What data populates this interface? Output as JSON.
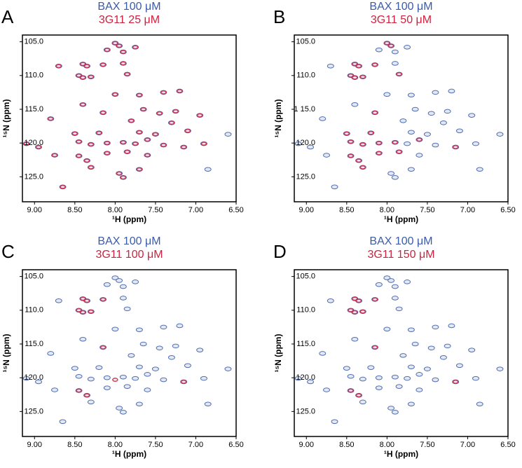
{
  "chart_data": [
    {
      "label": "A",
      "type": "scatter",
      "xlabel": "¹H (ppm)",
      "ylabel": "¹⁵N (ppm)",
      "xlim": [
        9.15,
        6.5
      ],
      "ylim": [
        104,
        128.7
      ],
      "xticks": [
        {
          "value": 9.0,
          "label": "9.00"
        },
        {
          "value": 8.5,
          "label": "8.50"
        },
        {
          "value": 8.0,
          "label": "8.00"
        },
        {
          "value": 7.5,
          "label": "7.50"
        },
        {
          "value": 7.0,
          "label": "7.00"
        },
        {
          "value": 6.5,
          "label": "6.50"
        }
      ],
      "yticks": [
        {
          "value": 105,
          "label": "105.0"
        },
        {
          "value": 110,
          "label": "110.0"
        },
        {
          "value": 115,
          "label": "115.0"
        },
        {
          "value": 120,
          "label": "120.0"
        },
        {
          "value": 125,
          "label": "125.0"
        }
      ],
      "series": [
        {
          "name": "BAX 100 μM",
          "color": "#3a5ba8",
          "x": [
            8.0,
            7.95,
            7.75,
            7.9,
            8.1,
            8.7,
            8.4,
            8.35,
            8.15,
            7.9,
            8.45,
            8.4,
            8.3,
            7.85,
            8.0,
            7.7,
            7.4,
            7.2,
            8.4,
            8.15,
            7.65,
            7.45,
            7.25,
            6.95,
            8.8,
            7.8,
            7.3,
            8.5,
            8.2,
            7.7,
            7.5,
            7.1,
            6.6,
            9.1,
            8.95,
            8.45,
            8.3,
            8.1,
            7.9,
            7.75,
            7.6,
            7.4,
            7.15,
            6.9,
            8.75,
            8.45,
            8.35,
            8.1,
            7.85,
            7.6,
            8.3,
            7.7,
            6.85,
            7.95,
            7.9,
            8.65
          ],
          "y": [
            105.2,
            105.6,
            105.8,
            106.5,
            106.2,
            108.6,
            108.3,
            108.6,
            108.4,
            108.2,
            110.0,
            110.3,
            110.2,
            109.8,
            112.8,
            112.9,
            112.5,
            112.3,
            114.3,
            115.5,
            115.0,
            115.6,
            115.3,
            115.9,
            116.4,
            116.7,
            117.0,
            118.6,
            118.5,
            118.4,
            118.7,
            118.2,
            118.7,
            120.1,
            120.6,
            119.8,
            120.2,
            120.0,
            119.9,
            120.1,
            119.5,
            120.3,
            120.6,
            120.1,
            121.8,
            121.9,
            122.6,
            121.5,
            121.3,
            121.8,
            123.6,
            123.9,
            123.9,
            124.5,
            125.1,
            126.5
          ]
        },
        {
          "name": "3G11 25 μM",
          "color": "#d0213f",
          "x": [
            8.0,
            7.95,
            7.75,
            7.9,
            8.1,
            8.7,
            8.4,
            8.35,
            8.15,
            7.9,
            8.45,
            8.4,
            8.3,
            7.85,
            8.0,
            7.7,
            7.4,
            7.2,
            8.4,
            8.15,
            7.65,
            7.45,
            7.25,
            6.95,
            8.8,
            7.8,
            7.3,
            8.5,
            8.2,
            7.7,
            7.5,
            7.1,
            9.1,
            8.95,
            8.45,
            8.3,
            8.1,
            7.9,
            7.75,
            7.6,
            7.4,
            7.15,
            6.9,
            8.75,
            8.45,
            8.35,
            8.1,
            7.85,
            7.6,
            8.3,
            7.7,
            7.95,
            7.9,
            8.65
          ],
          "y": [
            105.2,
            105.6,
            105.8,
            106.5,
            106.2,
            108.6,
            108.3,
            108.6,
            108.4,
            108.2,
            110.0,
            110.3,
            110.2,
            109.8,
            112.8,
            112.9,
            112.5,
            112.3,
            114.3,
            115.5,
            115.0,
            115.6,
            115.3,
            115.9,
            116.4,
            116.7,
            117.0,
            118.6,
            118.5,
            118.4,
            118.7,
            118.2,
            120.1,
            120.6,
            119.8,
            120.2,
            120.0,
            119.9,
            120.1,
            119.5,
            120.3,
            120.6,
            120.1,
            121.8,
            121.9,
            122.6,
            121.5,
            121.3,
            121.8,
            123.6,
            123.9,
            124.5,
            125.1,
            126.5
          ]
        }
      ]
    },
    {
      "label": "B",
      "type": "scatter",
      "xlabel": "¹H (ppm)",
      "ylabel": "¹⁵N (ppm)",
      "xlim": [
        9.15,
        6.5
      ],
      "ylim": [
        104,
        128.7
      ],
      "xticks": [
        {
          "value": 9.0,
          "label": "9.00"
        },
        {
          "value": 8.5,
          "label": "8.50"
        },
        {
          "value": 8.0,
          "label": "8.00"
        },
        {
          "value": 7.5,
          "label": "7.50"
        },
        {
          "value": 7.0,
          "label": "7.00"
        },
        {
          "value": 6.5,
          "label": "6.50"
        }
      ],
      "yticks": [
        {
          "value": 105,
          "label": "105.0"
        },
        {
          "value": 110,
          "label": "110.0"
        },
        {
          "value": 115,
          "label": "1 15.0"
        },
        {
          "value": 120,
          "label": "120.0"
        },
        {
          "value": 125,
          "label": "125.0"
        }
      ],
      "series": [
        {
          "name": "BAX 100 μM",
          "color": "#3a5ba8",
          "x": [
            8.0,
            7.95,
            7.75,
            7.9,
            8.1,
            8.7,
            8.4,
            8.35,
            8.15,
            7.9,
            8.45,
            8.4,
            8.3,
            7.85,
            8.0,
            7.7,
            7.4,
            7.2,
            8.4,
            8.15,
            7.65,
            7.45,
            7.25,
            6.95,
            8.8,
            7.8,
            7.3,
            8.5,
            8.2,
            7.7,
            7.5,
            7.1,
            6.6,
            9.1,
            8.95,
            8.45,
            8.3,
            8.1,
            7.9,
            7.75,
            7.6,
            7.4,
            7.15,
            6.9,
            8.75,
            8.45,
            8.35,
            8.1,
            7.85,
            7.6,
            8.3,
            7.7,
            6.85,
            7.95,
            7.9,
            8.65
          ],
          "y": [
            105.2,
            105.6,
            105.8,
            106.5,
            106.2,
            108.6,
            108.3,
            108.6,
            108.4,
            108.2,
            110.0,
            110.3,
            110.2,
            109.8,
            112.8,
            112.9,
            112.5,
            112.3,
            114.3,
            115.5,
            115.0,
            115.6,
            115.3,
            115.9,
            116.4,
            116.7,
            117.0,
            118.6,
            118.5,
            118.4,
            118.7,
            118.2,
            118.7,
            120.1,
            120.6,
            119.8,
            120.2,
            120.0,
            119.9,
            120.1,
            119.5,
            120.3,
            120.6,
            120.1,
            121.8,
            121.9,
            122.6,
            121.5,
            121.3,
            121.8,
            123.6,
            123.9,
            123.9,
            124.5,
            125.1,
            126.5
          ]
        },
        {
          "name": "3G11 50 μM",
          "color": "#d0213f",
          "x": [
            8.0,
            7.95,
            8.4,
            8.35,
            8.15,
            8.45,
            8.4,
            8.3,
            7.85,
            8.15,
            8.5,
            8.2,
            8.45,
            8.3,
            8.1,
            7.9,
            7.6,
            7.15,
            8.45,
            8.35,
            8.1,
            7.85,
            8.3
          ],
          "y": [
            105.2,
            105.6,
            108.3,
            108.6,
            108.4,
            110.0,
            110.3,
            110.2,
            109.8,
            115.5,
            118.6,
            118.5,
            119.8,
            120.2,
            120.0,
            119.9,
            119.5,
            120.6,
            121.9,
            122.6,
            121.5,
            121.3,
            123.6
          ]
        }
      ]
    },
    {
      "label": "C",
      "type": "scatter",
      "xlabel": "¹H (ppm)",
      "ylabel": "¹⁵N (ppm)",
      "xlim": [
        9.15,
        6.5
      ],
      "ylim": [
        104,
        128.7
      ],
      "xticks": [
        {
          "value": 9.0,
          "label": "9.00"
        },
        {
          "value": 8.5,
          "label": "8.50"
        },
        {
          "value": 8.0,
          "label": "8.00"
        },
        {
          "value": 7.5,
          "label": "7.50"
        },
        {
          "value": 7.0,
          "label": "7.00"
        },
        {
          "value": 6.5,
          "label": "6.50"
        }
      ],
      "yticks": [
        {
          "value": 105,
          "label": "105.0"
        },
        {
          "value": 110,
          "label": "110.0"
        },
        {
          "value": 115,
          "label": "115.0"
        },
        {
          "value": 120,
          "label": "120.0"
        },
        {
          "value": 125,
          "label": "125.0"
        }
      ],
      "series": [
        {
          "name": "BAX 100 μM",
          "color": "#3a5ba8",
          "x": [
            8.0,
            7.95,
            7.75,
            7.9,
            8.1,
            8.7,
            8.4,
            8.35,
            8.15,
            7.9,
            8.45,
            8.4,
            8.3,
            7.85,
            8.0,
            7.7,
            7.4,
            7.2,
            8.4,
            8.15,
            7.65,
            7.45,
            7.25,
            6.95,
            8.8,
            7.8,
            7.3,
            8.5,
            8.2,
            7.7,
            7.5,
            7.1,
            6.6,
            9.1,
            8.95,
            8.45,
            8.3,
            8.1,
            7.9,
            7.75,
            7.6,
            7.4,
            7.15,
            6.9,
            8.75,
            8.45,
            8.35,
            8.1,
            7.85,
            7.6,
            8.3,
            7.7,
            6.85,
            7.95,
            7.9,
            8.65
          ],
          "y": [
            105.2,
            105.6,
            105.8,
            106.5,
            106.2,
            108.6,
            108.3,
            108.6,
            108.4,
            108.2,
            110.0,
            110.3,
            110.2,
            109.8,
            112.8,
            112.9,
            112.5,
            112.3,
            114.3,
            115.5,
            115.0,
            115.6,
            115.3,
            115.9,
            116.4,
            116.7,
            117.0,
            118.6,
            118.5,
            118.4,
            118.7,
            118.2,
            118.7,
            120.1,
            120.6,
            119.8,
            120.2,
            120.0,
            119.9,
            120.1,
            119.5,
            120.3,
            120.6,
            120.1,
            121.8,
            121.9,
            122.6,
            121.5,
            121.3,
            121.8,
            123.6,
            123.9,
            123.9,
            124.5,
            125.1,
            126.5
          ]
        },
        {
          "name": "3G11 100 μM",
          "color": "#d0213f",
          "x": [
            8.4,
            8.35,
            8.15,
            8.45,
            8.4,
            8.3,
            8.15,
            8.0,
            8.45,
            8.35,
            7.15
          ],
          "y": [
            108.3,
            108.6,
            108.4,
            110.0,
            110.3,
            110.2,
            115.5,
            120.3,
            121.9,
            122.6,
            120.6
          ]
        }
      ]
    },
    {
      "label": "D",
      "type": "scatter",
      "xlabel": "¹H (ppm)",
      "ylabel": "¹⁵N (ppm)",
      "xlim": [
        9.15,
        6.5
      ],
      "ylim": [
        104,
        128.7
      ],
      "xticks": [
        {
          "value": 9.0,
          "label": "9.00"
        },
        {
          "value": 8.5,
          "label": "8.50"
        },
        {
          "value": 8.0,
          "label": "8.00"
        },
        {
          "value": 7.5,
          "label": "7.50"
        },
        {
          "value": 7.0,
          "label": "7.00"
        },
        {
          "value": 6.5,
          "label": "6.50"
        }
      ],
      "yticks": [
        {
          "value": 105,
          "label": "105.0"
        },
        {
          "value": 110,
          "label": "110.0"
        },
        {
          "value": 115,
          "label": "115.0"
        },
        {
          "value": 120,
          "label": "120.0"
        },
        {
          "value": 125,
          "label": "125.0"
        }
      ],
      "series": [
        {
          "name": "BAX 100 μM",
          "color": "#3a5ba8",
          "x": [
            8.0,
            7.95,
            7.75,
            7.9,
            8.1,
            8.7,
            8.4,
            8.35,
            8.15,
            7.9,
            8.45,
            8.4,
            8.3,
            7.85,
            8.0,
            7.7,
            7.4,
            7.2,
            8.4,
            8.15,
            7.65,
            7.45,
            7.25,
            6.95,
            8.8,
            7.8,
            7.3,
            8.5,
            8.2,
            7.7,
            7.5,
            7.1,
            6.6,
            9.1,
            8.95,
            8.45,
            8.3,
            8.1,
            7.9,
            7.75,
            7.6,
            7.4,
            7.15,
            6.9,
            8.75,
            8.45,
            8.35,
            8.1,
            7.85,
            7.6,
            8.3,
            7.7,
            6.85,
            7.95,
            7.9,
            8.65
          ],
          "y": [
            105.2,
            105.6,
            105.8,
            106.5,
            106.2,
            108.6,
            108.3,
            108.6,
            108.4,
            108.2,
            110.0,
            110.3,
            110.2,
            109.8,
            112.8,
            112.9,
            112.5,
            112.3,
            114.3,
            115.5,
            115.0,
            115.6,
            115.3,
            115.9,
            116.4,
            116.7,
            117.0,
            118.6,
            118.5,
            118.4,
            118.7,
            118.2,
            118.7,
            120.1,
            120.6,
            119.8,
            120.2,
            120.0,
            119.9,
            120.1,
            119.5,
            120.3,
            120.6,
            120.1,
            121.8,
            121.9,
            122.6,
            121.5,
            121.3,
            121.8,
            123.6,
            123.9,
            123.9,
            124.5,
            125.1,
            126.5
          ]
        },
        {
          "name": "3G11 150 μM",
          "color": "#d0213f",
          "x": [
            8.4,
            8.35,
            8.15,
            8.45,
            8.4,
            8.3,
            8.15,
            8.45,
            8.35,
            7.15
          ],
          "y": [
            108.3,
            108.6,
            108.4,
            110.0,
            110.3,
            110.2,
            115.5,
            121.9,
            122.6,
            120.6
          ]
        }
      ]
    }
  ]
}
